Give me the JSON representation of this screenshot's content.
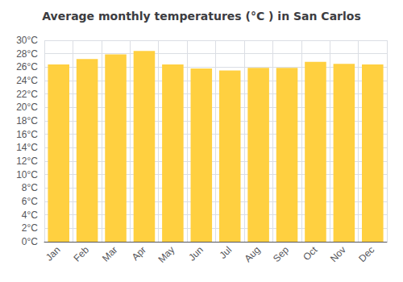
{
  "chart_data": {
    "type": "bar",
    "title": "Average monthly temperatures (°C ) in San Carlos",
    "categories": [
      "Jan",
      "Feb",
      "Mar",
      "Apr",
      "May",
      "Jun",
      "Jul",
      "Aug",
      "Sep",
      "Oct",
      "Nov",
      "Dec"
    ],
    "values": [
      26.4,
      27.2,
      27.9,
      28.4,
      26.4,
      25.8,
      25.5,
      25.9,
      25.9,
      26.8,
      26.5,
      26.4
    ],
    "color": "#FFD040",
    "ylim": [
      0,
      30
    ],
    "yticks": [
      {
        "value": 0,
        "label": "0°C"
      },
      {
        "value": 2,
        "label": "2°C"
      },
      {
        "value": 4,
        "label": "4°C"
      },
      {
        "value": 6,
        "label": "6°C"
      },
      {
        "value": 8,
        "label": "8°C"
      },
      {
        "value": 10,
        "label": "10°C"
      },
      {
        "value": 12,
        "label": "12°C"
      },
      {
        "value": 14,
        "label": "14°C"
      },
      {
        "value": 16,
        "label": "16°C"
      },
      {
        "value": 18,
        "label": "18°C"
      },
      {
        "value": 20,
        "label": "20°C"
      },
      {
        "value": 22,
        "label": "22°C"
      },
      {
        "value": 24,
        "label": "24°C"
      },
      {
        "value": 26,
        "label": "26°C"
      },
      {
        "value": 28,
        "label": "28°C"
      },
      {
        "value": 30,
        "label": "30°C"
      }
    ],
    "grid": true
  }
}
